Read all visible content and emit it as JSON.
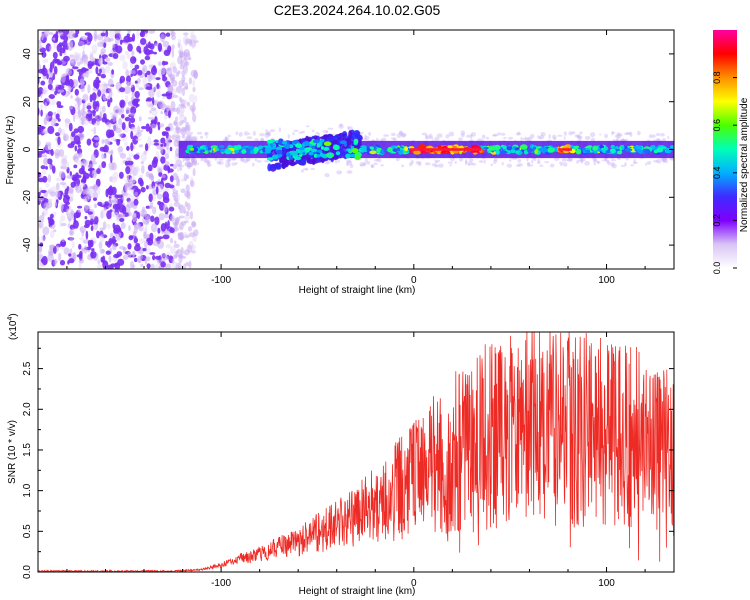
{
  "title": "C2E3.2024.264.10.02.G05",
  "chart_data": [
    {
      "type": "heatmap",
      "name": "spectrogram",
      "xlabel": "Height of straight line (km)",
      "ylabel": "Frequency (Hz)",
      "xlim": [
        -195,
        135
      ],
      "ylim": [
        -50,
        50
      ],
      "xticks": [
        -100,
        0,
        100
      ],
      "xtick_labels": [
        "-100",
        "0",
        "100"
      ],
      "yticks": [
        -40,
        -20,
        0,
        20,
        40
      ],
      "ytick_labels": [
        "-40",
        "-20",
        "0",
        "20",
        "40"
      ],
      "noise_region_km": [
        -195,
        -113
      ],
      "signal_band_hz": [
        -3,
        3
      ],
      "signal_start_km": -122,
      "doppler_disturbance_km": [
        -75,
        -28
      ],
      "peak_segments_km": [
        [
          -2,
          35
        ],
        [
          75,
          82
        ]
      ],
      "colorbar": {
        "label": "Normalized spectral amplitude",
        "range": [
          0.0,
          1.0
        ],
        "ticks": [
          0.0,
          0.2,
          0.4,
          0.6,
          0.8
        ],
        "tick_labels": [
          "0.0",
          "0.2",
          "0.4",
          "0.6",
          "0.8"
        ],
        "colormap": [
          "#ffffff",
          "#d8c3f5",
          "#7f00ff",
          "#3f2bff",
          "#00b0ff",
          "#00ffb8",
          "#4cff00",
          "#ffff00",
          "#ff9000",
          "#ff0000",
          "#ff00a0"
        ]
      }
    },
    {
      "type": "line",
      "name": "snr",
      "xlabel": "Height of straight line (km)",
      "ylabel": "SNR (10 * v/v)",
      "y_multiplier": "(x10",
      "y_multiplier_exp": "4",
      "y_multiplier_close": ")",
      "xlim": [
        -195,
        135
      ],
      "ylim": [
        0,
        2.95
      ],
      "xticks": [
        -100,
        0,
        100
      ],
      "xtick_labels": [
        "-100",
        "0",
        "100"
      ],
      "yticks": [
        0,
        0.5,
        1.0,
        1.5,
        2.0,
        2.5
      ],
      "ytick_labels": [
        "0.0",
        "0.5",
        "1.0",
        "1.5",
        "2.0",
        "2.5"
      ],
      "color": "#ee2a24",
      "trend": {
        "x": [
          -195,
          -125,
          -110,
          -98,
          -90,
          -80,
          -70,
          -60,
          -50,
          -40,
          -30,
          -20,
          -10,
          0,
          10,
          20,
          30,
          40,
          50,
          60,
          70,
          80,
          90,
          100,
          110,
          120,
          130,
          135
        ],
        "y": [
          0.01,
          0.01,
          0.03,
          0.1,
          0.16,
          0.22,
          0.3,
          0.38,
          0.48,
          0.57,
          0.68,
          0.82,
          0.98,
          1.13,
          1.3,
          1.45,
          1.58,
          1.68,
          1.75,
          1.78,
          1.78,
          1.76,
          1.74,
          1.72,
          1.7,
          1.68,
          1.6,
          1.4
        ]
      }
    }
  ]
}
